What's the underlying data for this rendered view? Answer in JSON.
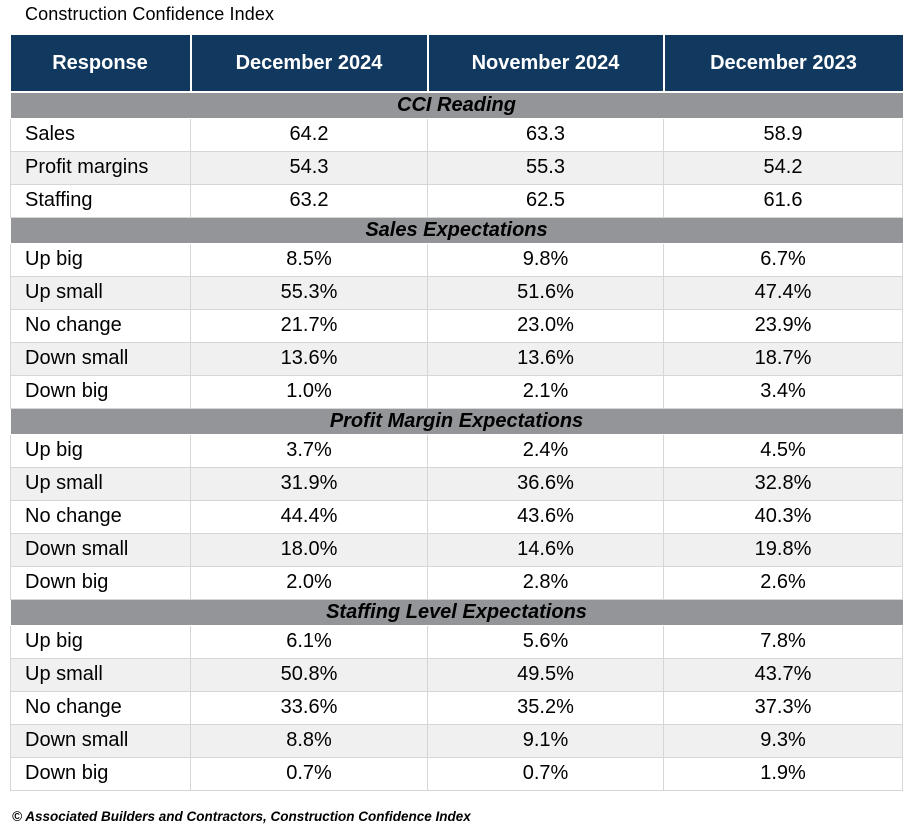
{
  "title": "Construction Confidence Index",
  "columns": [
    "Response",
    "December 2024",
    "November 2024",
    "December 2023"
  ],
  "sections": [
    {
      "heading": "CCI Reading",
      "rows": [
        [
          "Sales",
          "64.2",
          "63.3",
          "58.9"
        ],
        [
          "Profit margins",
          "54.3",
          "55.3",
          "54.2"
        ],
        [
          "Staffing",
          "63.2",
          "62.5",
          "61.6"
        ]
      ]
    },
    {
      "heading": "Sales Expectations",
      "rows": [
        [
          "Up big",
          "8.5%",
          "9.8%",
          "6.7%"
        ],
        [
          "Up small",
          "55.3%",
          "51.6%",
          "47.4%"
        ],
        [
          "No change",
          "21.7%",
          "23.0%",
          "23.9%"
        ],
        [
          "Down small",
          "13.6%",
          "13.6%",
          "18.7%"
        ],
        [
          "Down big",
          "1.0%",
          "2.1%",
          "3.4%"
        ]
      ]
    },
    {
      "heading": "Profit Margin Expectations",
      "rows": [
        [
          "Up big",
          "3.7%",
          "2.4%",
          "4.5%"
        ],
        [
          "Up small",
          "31.9%",
          "36.6%",
          "32.8%"
        ],
        [
          "No change",
          "44.4%",
          "43.6%",
          "40.3%"
        ],
        [
          "Down small",
          "18.0%",
          "14.6%",
          "19.8%"
        ],
        [
          "Down big",
          "2.0%",
          "2.8%",
          "2.6%"
        ]
      ]
    },
    {
      "heading": "Staffing Level Expectations",
      "rows": [
        [
          "Up big",
          "6.1%",
          "5.6%",
          "7.8%"
        ],
        [
          "Up small",
          "50.8%",
          "49.5%",
          "43.7%"
        ],
        [
          "No change",
          "33.6%",
          "35.2%",
          "37.3%"
        ],
        [
          "Down small",
          "8.8%",
          "9.1%",
          "9.3%"
        ],
        [
          "Down big",
          "0.7%",
          "0.7%",
          "1.9%"
        ]
      ]
    }
  ],
  "footer": "© Associated Builders and Contractors, Construction Confidence Index",
  "colors": {
    "header_bg": "#11385E",
    "section_bg": "#939598",
    "alt_row_bg": "#F0F0F1",
    "border": "#D6D6D6"
  },
  "chart_data": {
    "type": "table",
    "title": "Construction Confidence Index",
    "columns": [
      "Response",
      "December 2024",
      "November 2024",
      "December 2023"
    ],
    "sections": [
      {
        "name": "CCI Reading",
        "rows": [
          {
            "response": "Sales",
            "dec_2024": 64.2,
            "nov_2024": 63.3,
            "dec_2023": 58.9
          },
          {
            "response": "Profit margins",
            "dec_2024": 54.3,
            "nov_2024": 55.3,
            "dec_2023": 54.2
          },
          {
            "response": "Staffing",
            "dec_2024": 63.2,
            "nov_2024": 62.5,
            "dec_2023": 61.6
          }
        ]
      },
      {
        "name": "Sales Expectations",
        "rows": [
          {
            "response": "Up big",
            "dec_2024": "8.5%",
            "nov_2024": "9.8%",
            "dec_2023": "6.7%"
          },
          {
            "response": "Up small",
            "dec_2024": "55.3%",
            "nov_2024": "51.6%",
            "dec_2023": "47.4%"
          },
          {
            "response": "No change",
            "dec_2024": "21.7%",
            "nov_2024": "23.0%",
            "dec_2023": "23.9%"
          },
          {
            "response": "Down small",
            "dec_2024": "13.6%",
            "nov_2024": "13.6%",
            "dec_2023": "18.7%"
          },
          {
            "response": "Down big",
            "dec_2024": "1.0%",
            "nov_2024": "2.1%",
            "dec_2023": "3.4%"
          }
        ]
      },
      {
        "name": "Profit Margin Expectations",
        "rows": [
          {
            "response": "Up big",
            "dec_2024": "3.7%",
            "nov_2024": "2.4%",
            "dec_2023": "4.5%"
          },
          {
            "response": "Up small",
            "dec_2024": "31.9%",
            "nov_2024": "36.6%",
            "dec_2023": "32.8%"
          },
          {
            "response": "No change",
            "dec_2024": "44.4%",
            "nov_2024": "43.6%",
            "dec_2023": "40.3%"
          },
          {
            "response": "Down small",
            "dec_2024": "18.0%",
            "nov_2024": "14.6%",
            "dec_2023": "19.8%"
          },
          {
            "response": "Down big",
            "dec_2024": "2.0%",
            "nov_2024": "2.8%",
            "dec_2023": "2.6%"
          }
        ]
      },
      {
        "name": "Staffing Level Expectations",
        "rows": [
          {
            "response": "Up big",
            "dec_2024": "6.1%",
            "nov_2024": "5.6%",
            "dec_2023": "7.8%"
          },
          {
            "response": "Up small",
            "dec_2024": "50.8%",
            "nov_2024": "49.5%",
            "dec_2023": "43.7%"
          },
          {
            "response": "No change",
            "dec_2024": "33.6%",
            "nov_2024": "35.2%",
            "dec_2023": "37.3%"
          },
          {
            "response": "Down small",
            "dec_2024": "8.8%",
            "nov_2024": "9.1%",
            "dec_2023": "9.3%"
          },
          {
            "response": "Down big",
            "dec_2024": "0.7%",
            "nov_2024": "0.7%",
            "dec_2023": "1.9%"
          }
        ]
      }
    ],
    "source": "© Associated Builders and Contractors, Construction Confidence Index"
  }
}
